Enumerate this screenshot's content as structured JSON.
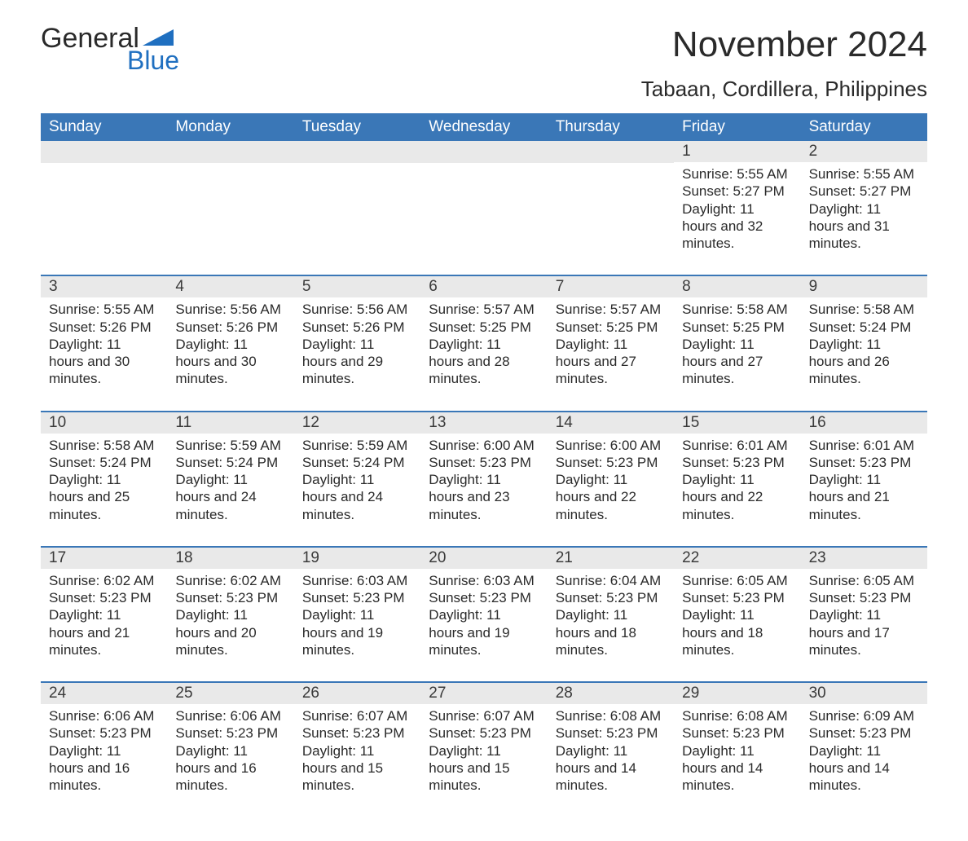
{
  "logo": {
    "word1": "General",
    "word2": "Blue"
  },
  "title": "November 2024",
  "location": "Tabaan, Cordillera, Philippines",
  "colors": {
    "header_bg": "#3a77b7",
    "header_text": "#ffffff",
    "row_border": "#3a77b7",
    "daynum_bg": "#e9e9e9",
    "body_text": "#2a2a2a",
    "logo_blue": "#1f6fc0"
  },
  "typography": {
    "title_fontsize": 44,
    "location_fontsize": 26,
    "weekday_fontsize": 19,
    "daynum_fontsize": 19,
    "body_fontsize": 17
  },
  "layout": {
    "columns": 7,
    "rows": 5,
    "type": "calendar-table"
  },
  "weekdays": [
    "Sunday",
    "Monday",
    "Tuesday",
    "Wednesday",
    "Thursday",
    "Friday",
    "Saturday"
  ],
  "labels": {
    "sunrise": "Sunrise",
    "sunset": "Sunset",
    "daylight": "Daylight"
  },
  "weeks": [
    [
      null,
      null,
      null,
      null,
      null,
      {
        "d": "1",
        "sr": "5:55 AM",
        "ss": "5:27 PM",
        "dl": "11 hours and 32 minutes."
      },
      {
        "d": "2",
        "sr": "5:55 AM",
        "ss": "5:27 PM",
        "dl": "11 hours and 31 minutes."
      }
    ],
    [
      {
        "d": "3",
        "sr": "5:55 AM",
        "ss": "5:26 PM",
        "dl": "11 hours and 30 minutes."
      },
      {
        "d": "4",
        "sr": "5:56 AM",
        "ss": "5:26 PM",
        "dl": "11 hours and 30 minutes."
      },
      {
        "d": "5",
        "sr": "5:56 AM",
        "ss": "5:26 PM",
        "dl": "11 hours and 29 minutes."
      },
      {
        "d": "6",
        "sr": "5:57 AM",
        "ss": "5:25 PM",
        "dl": "11 hours and 28 minutes."
      },
      {
        "d": "7",
        "sr": "5:57 AM",
        "ss": "5:25 PM",
        "dl": "11 hours and 27 minutes."
      },
      {
        "d": "8",
        "sr": "5:58 AM",
        "ss": "5:25 PM",
        "dl": "11 hours and 27 minutes."
      },
      {
        "d": "9",
        "sr": "5:58 AM",
        "ss": "5:24 PM",
        "dl": "11 hours and 26 minutes."
      }
    ],
    [
      {
        "d": "10",
        "sr": "5:58 AM",
        "ss": "5:24 PM",
        "dl": "11 hours and 25 minutes."
      },
      {
        "d": "11",
        "sr": "5:59 AM",
        "ss": "5:24 PM",
        "dl": "11 hours and 24 minutes."
      },
      {
        "d": "12",
        "sr": "5:59 AM",
        "ss": "5:24 PM",
        "dl": "11 hours and 24 minutes."
      },
      {
        "d": "13",
        "sr": "6:00 AM",
        "ss": "5:23 PM",
        "dl": "11 hours and 23 minutes."
      },
      {
        "d": "14",
        "sr": "6:00 AM",
        "ss": "5:23 PM",
        "dl": "11 hours and 22 minutes."
      },
      {
        "d": "15",
        "sr": "6:01 AM",
        "ss": "5:23 PM",
        "dl": "11 hours and 22 minutes."
      },
      {
        "d": "16",
        "sr": "6:01 AM",
        "ss": "5:23 PM",
        "dl": "11 hours and 21 minutes."
      }
    ],
    [
      {
        "d": "17",
        "sr": "6:02 AM",
        "ss": "5:23 PM",
        "dl": "11 hours and 21 minutes."
      },
      {
        "d": "18",
        "sr": "6:02 AM",
        "ss": "5:23 PM",
        "dl": "11 hours and 20 minutes."
      },
      {
        "d": "19",
        "sr": "6:03 AM",
        "ss": "5:23 PM",
        "dl": "11 hours and 19 minutes."
      },
      {
        "d": "20",
        "sr": "6:03 AM",
        "ss": "5:23 PM",
        "dl": "11 hours and 19 minutes."
      },
      {
        "d": "21",
        "sr": "6:04 AM",
        "ss": "5:23 PM",
        "dl": "11 hours and 18 minutes."
      },
      {
        "d": "22",
        "sr": "6:05 AM",
        "ss": "5:23 PM",
        "dl": "11 hours and 18 minutes."
      },
      {
        "d": "23",
        "sr": "6:05 AM",
        "ss": "5:23 PM",
        "dl": "11 hours and 17 minutes."
      }
    ],
    [
      {
        "d": "24",
        "sr": "6:06 AM",
        "ss": "5:23 PM",
        "dl": "11 hours and 16 minutes."
      },
      {
        "d": "25",
        "sr": "6:06 AM",
        "ss": "5:23 PM",
        "dl": "11 hours and 16 minutes."
      },
      {
        "d": "26",
        "sr": "6:07 AM",
        "ss": "5:23 PM",
        "dl": "11 hours and 15 minutes."
      },
      {
        "d": "27",
        "sr": "6:07 AM",
        "ss": "5:23 PM",
        "dl": "11 hours and 15 minutes."
      },
      {
        "d": "28",
        "sr": "6:08 AM",
        "ss": "5:23 PM",
        "dl": "11 hours and 14 minutes."
      },
      {
        "d": "29",
        "sr": "6:08 AM",
        "ss": "5:23 PM",
        "dl": "11 hours and 14 minutes."
      },
      {
        "d": "30",
        "sr": "6:09 AM",
        "ss": "5:23 PM",
        "dl": "11 hours and 14 minutes."
      }
    ]
  ]
}
